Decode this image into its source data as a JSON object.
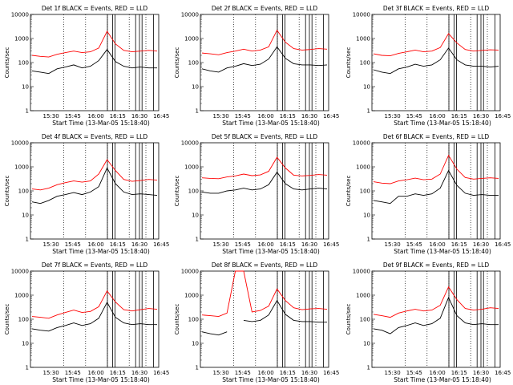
{
  "chart_data": [
    {
      "type": "line",
      "title": "Det 1f BLACK = Events, RED = LLD",
      "xlabel": "Start Time (13-Mar-05 15:18:40)",
      "ylabel": "Counts/sec",
      "x_ticks": [
        "15:30",
        "15:45",
        "16:00",
        "16:15",
        "16:30",
        "16:45"
      ],
      "y_ticks": [
        "1",
        "10",
        "100",
        "1000",
        "10000"
      ],
      "yscale": "log",
      "ylim": [
        1,
        10000
      ],
      "series": [
        {
          "name": "BLACK",
          "color": "#000000",
          "values": [
            45,
            40,
            35,
            55,
            65,
            80,
            60,
            70,
            120,
            350,
            110,
            70,
            60,
            65,
            60,
            60
          ]
        },
        {
          "name": "RED",
          "color": "#ff0000",
          "values": [
            200,
            180,
            170,
            220,
            260,
            300,
            260,
            280,
            400,
            2000,
            600,
            320,
            280,
            300,
            320,
            300
          ]
        }
      ]
    },
    {
      "type": "line",
      "title": "Det 2f BLACK = Events, RED = LLD",
      "xlabel": "Start Time (13-Mar-05 15:18:40)",
      "ylabel": "Counts/sec",
      "x_ticks": [
        "15:30",
        "15:45",
        "16:00",
        "16:15",
        "16:30",
        "16:45"
      ],
      "y_ticks": [
        "1",
        "10",
        "100",
        "1000",
        "10000"
      ],
      "yscale": "log",
      "ylim": [
        1,
        10000
      ],
      "series": [
        {
          "name": "BLACK",
          "color": "#000000",
          "values": [
            55,
            45,
            40,
            60,
            70,
            90,
            75,
            85,
            140,
            450,
            150,
            90,
            80,
            80,
            75,
            80
          ]
        },
        {
          "name": "RED",
          "color": "#ff0000",
          "values": [
            250,
            230,
            210,
            260,
            300,
            360,
            300,
            330,
            450,
            2200,
            700,
            380,
            330,
            350,
            380,
            360
          ]
        }
      ]
    },
    {
      "type": "line",
      "title": "Det 3f BLACK = Events, RED = LLD",
      "xlabel": "Start Time (13-Mar-05 15:18:40)",
      "ylabel": "Counts/sec",
      "x_ticks": [
        "15:30",
        "15:45",
        "16:00",
        "16:15",
        "16:30",
        "16:45"
      ],
      "y_ticks": [
        "1",
        "10",
        "100",
        "1000",
        "10000"
      ],
      "yscale": "log",
      "ylim": [
        1,
        10000
      ],
      "series": [
        {
          "name": "BLACK",
          "color": "#000000",
          "values": [
            50,
            40,
            35,
            55,
            65,
            85,
            70,
            80,
            130,
            400,
            130,
            80,
            70,
            70,
            65,
            70
          ]
        },
        {
          "name": "RED",
          "color": "#ff0000",
          "values": [
            230,
            200,
            190,
            240,
            280,
            330,
            280,
            300,
            420,
            1600,
            650,
            350,
            300,
            320,
            340,
            330
          ]
        }
      ]
    },
    {
      "type": "line",
      "title": "Det 4f BLACK = Events, RED = LLD",
      "xlabel": "Start Time (13-Mar-05 15:18:40)",
      "ylabel": "Counts/sec",
      "x_ticks": [
        "15:30",
        "15:45",
        "16:00",
        "16:15",
        "16:30",
        "16:45"
      ],
      "y_ticks": [
        "1",
        "10",
        "100",
        "1000",
        "10000"
      ],
      "yscale": "log",
      "ylim": [
        1,
        10000
      ],
      "series": [
        {
          "name": "BLACK",
          "color": "#000000",
          "values": [
            35,
            30,
            40,
            60,
            70,
            85,
            70,
            90,
            150,
            900,
            200,
            90,
            70,
            75,
            70,
            65
          ]
        },
        {
          "name": "RED",
          "color": "#ff0000",
          "values": [
            120,
            110,
            130,
            180,
            220,
            260,
            230,
            260,
            500,
            2000,
            700,
            300,
            250,
            270,
            300,
            280
          ]
        }
      ]
    },
    {
      "type": "line",
      "title": "Det 5f BLACK = Events, RED = LLD",
      "xlabel": "Start Time (13-Mar-05 15:18:40)",
      "ylabel": "Counts/sec",
      "x_ticks": [
        "15:30",
        "15:45",
        "16:00",
        "16:15",
        "16:30",
        "16:45"
      ],
      "y_ticks": [
        "1",
        "10",
        "100",
        "1000",
        "10000"
      ],
      "yscale": "log",
      "ylim": [
        1,
        10000
      ],
      "series": [
        {
          "name": "BLACK",
          "color": "#000000",
          "values": [
            90,
            80,
            80,
            100,
            110,
            130,
            110,
            120,
            180,
            600,
            200,
            120,
            110,
            120,
            130,
            120
          ]
        },
        {
          "name": "RED",
          "color": "#ff0000",
          "values": [
            350,
            330,
            320,
            380,
            420,
            500,
            430,
            460,
            650,
            2500,
            900,
            450,
            420,
            440,
            480,
            450
          ]
        }
      ]
    },
    {
      "type": "line",
      "title": "Det 6f BLACK = Events, RED = LLD",
      "xlabel": "Start Time (13-Mar-05 15:18:40)",
      "ylabel": "Counts/sec",
      "x_ticks": [
        "15:30",
        "15:45",
        "16:00",
        "16:15",
        "16:30",
        "16:45"
      ],
      "y_ticks": [
        "1",
        "10",
        "100",
        "1000",
        "10000"
      ],
      "yscale": "log",
      "ylim": [
        1,
        10000
      ],
      "series": [
        {
          "name": "BLACK",
          "color": "#000000",
          "values": [
            40,
            35,
            30,
            60,
            60,
            75,
            65,
            75,
            130,
            700,
            170,
            80,
            65,
            70,
            65,
            65
          ]
        },
        {
          "name": "RED",
          "color": "#ff0000",
          "values": [
            240,
            210,
            200,
            260,
            290,
            340,
            290,
            310,
            500,
            3000,
            800,
            360,
            310,
            330,
            350,
            330
          ]
        }
      ]
    },
    {
      "type": "line",
      "title": "Det 7f BLACK = Events, RED = LLD",
      "xlabel": "Start Time (13-Mar-05 15:18:40)",
      "ylabel": "Counts/sec",
      "x_ticks": [
        "15:30",
        "15:45",
        "16:00",
        "16:15",
        "16:30",
        "16:45"
      ],
      "y_ticks": [
        "1",
        "10",
        "100",
        "1000",
        "10000"
      ],
      "yscale": "log",
      "ylim": [
        1,
        10000
      ],
      "series": [
        {
          "name": "BLACK",
          "color": "#000000",
          "values": [
            40,
            35,
            32,
            45,
            55,
            70,
            55,
            65,
            110,
            500,
            120,
            70,
            60,
            65,
            60,
            60
          ]
        },
        {
          "name": "RED",
          "color": "#ff0000",
          "values": [
            130,
            120,
            110,
            150,
            190,
            240,
            190,
            210,
            330,
            1500,
            520,
            250,
            220,
            250,
            280,
            260
          ]
        }
      ]
    },
    {
      "type": "line",
      "title": "Det 8f BLACK = Events, RED = LLD",
      "xlabel": "Start Time (13-Mar-05 15:18:40)",
      "ylabel": "Counts/sec",
      "x_ticks": [
        "15:30",
        "15:45",
        "16:00",
        "16:15",
        "16:30",
        "16:45"
      ],
      "y_ticks": [
        "1",
        "10",
        "100",
        "1000",
        "10000"
      ],
      "yscale": "log",
      "ylim": [
        1,
        10000
      ],
      "series": [
        {
          "name": "BLACK",
          "color": "#000000",
          "values": [
            30,
            25,
            22,
            30,
            null,
            90,
            80,
            90,
            150,
            600,
            160,
            90,
            80,
            80,
            75,
            75
          ]
        },
        {
          "name": "RED",
          "color": "#ff0000",
          "values": [
            150,
            140,
            130,
            180,
            10000,
            10000,
            200,
            230,
            350,
            1800,
            600,
            300,
            250,
            270,
            280,
            260
          ]
        }
      ]
    },
    {
      "type": "line",
      "title": "Det 9f BLACK = Events, RED = LLD",
      "xlabel": "Start Time (13-Mar-05 15:18:40)",
      "ylabel": "Counts/sec",
      "x_ticks": [
        "15:30",
        "15:45",
        "16:00",
        "16:15",
        "16:30",
        "16:45"
      ],
      "y_ticks": [
        "1",
        "10",
        "100",
        "1000",
        "10000"
      ],
      "yscale": "log",
      "ylim": [
        1,
        10000
      ],
      "series": [
        {
          "name": "BLACK",
          "color": "#000000",
          "values": [
            40,
            35,
            25,
            45,
            55,
            70,
            55,
            65,
            110,
            800,
            140,
            70,
            60,
            65,
            60,
            60
          ]
        },
        {
          "name": "RED",
          "color": "#ff0000",
          "values": [
            160,
            140,
            120,
            180,
            220,
            260,
            220,
            240,
            380,
            2200,
            650,
            280,
            240,
            260,
            300,
            280
          ]
        }
      ]
    }
  ]
}
